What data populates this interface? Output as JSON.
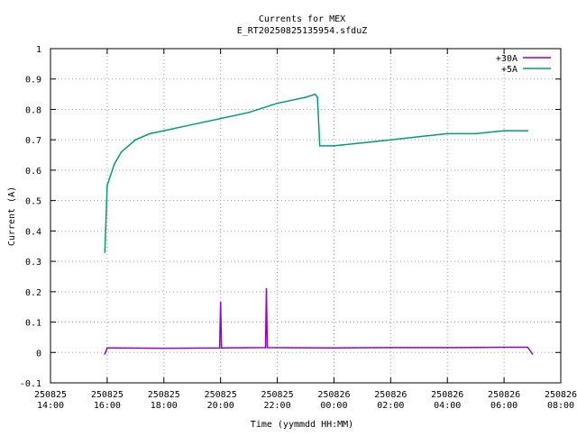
{
  "chart_data": {
    "type": "line",
    "title": "Currents for MEX",
    "subtitle": "E_RT20250825135954.sfduZ",
    "xlabel": "Time (yymmdd HH:MM)",
    "ylabel": "Current (A)",
    "ylim": [
      -0.1,
      1.0
    ],
    "yticks": [
      -0.1,
      0,
      0.1,
      0.2,
      0.3,
      0.4,
      0.5,
      0.6,
      0.7,
      0.8,
      0.9,
      1
    ],
    "ytick_labels": [
      "-0.1",
      "0",
      "0.1",
      "0.2",
      "0.3",
      "0.4",
      "0.5",
      "0.6",
      "0.7",
      "0.8",
      "0.9",
      "1"
    ],
    "xlim": [
      "2025-08-25 14:00",
      "2025-08-26 08:00"
    ],
    "xticks": [
      {
        "date": "250825",
        "time": "14:00"
      },
      {
        "date": "250825",
        "time": "16:00"
      },
      {
        "date": "250825",
        "time": "18:00"
      },
      {
        "date": "250825",
        "time": "20:00"
      },
      {
        "date": "250825",
        "time": "22:00"
      },
      {
        "date": "250826",
        "time": "00:00"
      },
      {
        "date": "250826",
        "time": "02:00"
      },
      {
        "date": "250826",
        "time": "04:00"
      },
      {
        "date": "250826",
        "time": "06:00"
      },
      {
        "date": "250826",
        "time": "08:00"
      }
    ],
    "grid": true,
    "legend_position": "top-right",
    "series": [
      {
        "name": "+30A",
        "color": "#9400d3",
        "points": [
          [
            "2025-08-25 15:55",
            -0.005
          ],
          [
            "2025-08-25 16:00",
            0.015
          ],
          [
            "2025-08-25 18:00",
            0.014
          ],
          [
            "2025-08-25 19:58",
            0.015
          ],
          [
            "2025-08-25 20:00",
            0.165
          ],
          [
            "2025-08-25 20:02",
            0.015
          ],
          [
            "2025-08-25 21:35",
            0.016
          ],
          [
            "2025-08-25 21:37",
            0.21
          ],
          [
            "2025-08-25 21:39",
            0.016
          ],
          [
            "2025-08-26 00:00",
            0.015
          ],
          [
            "2025-08-26 02:00",
            0.016
          ],
          [
            "2025-08-26 04:00",
            0.016
          ],
          [
            "2025-08-26 06:00",
            0.017
          ],
          [
            "2025-08-26 06:50",
            0.017
          ],
          [
            "2025-08-26 07:00",
            -0.005
          ]
        ]
      },
      {
        "name": "+5A",
        "color": "#009e73",
        "points": [
          [
            "2025-08-25 15:55",
            0.33
          ],
          [
            "2025-08-25 16:00",
            0.55
          ],
          [
            "2025-08-25 16:15",
            0.62
          ],
          [
            "2025-08-25 16:30",
            0.66
          ],
          [
            "2025-08-25 17:00",
            0.7
          ],
          [
            "2025-08-25 17:30",
            0.72
          ],
          [
            "2025-08-25 18:00",
            0.73
          ],
          [
            "2025-08-25 19:00",
            0.75
          ],
          [
            "2025-08-25 20:00",
            0.77
          ],
          [
            "2025-08-25 21:00",
            0.79
          ],
          [
            "2025-08-25 22:00",
            0.82
          ],
          [
            "2025-08-25 23:00",
            0.84
          ],
          [
            "2025-08-25 23:20",
            0.85
          ],
          [
            "2025-08-25 23:25",
            0.84
          ],
          [
            "2025-08-25 23:30",
            0.68
          ],
          [
            "2025-08-26 00:00",
            0.68
          ],
          [
            "2025-08-26 01:00",
            0.69
          ],
          [
            "2025-08-26 02:00",
            0.7
          ],
          [
            "2025-08-26 03:00",
            0.71
          ],
          [
            "2025-08-26 04:00",
            0.72
          ],
          [
            "2025-08-26 05:00",
            0.72
          ],
          [
            "2025-08-26 06:00",
            0.73
          ],
          [
            "2025-08-26 06:50",
            0.73
          ]
        ]
      }
    ]
  }
}
